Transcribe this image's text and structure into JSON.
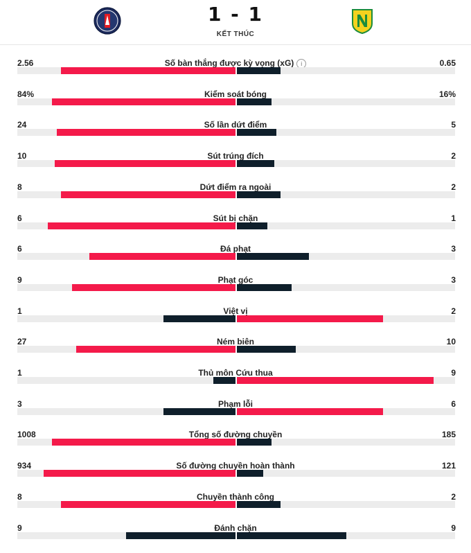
{
  "match": {
    "score": "1 - 1",
    "status": "KẾT THÚC",
    "home_logo_icon": "psg-crest-icon",
    "away_logo_icon": "nantes-crest-icon"
  },
  "colors": {
    "home": "#f41a4a",
    "away": "#0f1f2b",
    "track": "#ececec"
  },
  "stats": [
    {
      "label": "Số bàn thắng được kỳ vọng (xG)",
      "home": "2.56",
      "away": "0.65",
      "home_share": 0.8,
      "away_share": 0.2,
      "info": true,
      "leader": "home"
    },
    {
      "label": "Kiểm soát bóng",
      "home": "84%",
      "away": "16%",
      "home_share": 0.84,
      "away_share": 0.16,
      "leader": "home"
    },
    {
      "label": "Số lần dứt điểm",
      "home": "24",
      "away": "5",
      "home_share": 0.82,
      "away_share": 0.18,
      "leader": "home"
    },
    {
      "label": "Sút trúng đích",
      "home": "10",
      "away": "2",
      "home_share": 0.83,
      "away_share": 0.17,
      "leader": "home"
    },
    {
      "label": "Dứt điểm ra ngoài",
      "home": "8",
      "away": "2",
      "home_share": 0.8,
      "away_share": 0.2,
      "leader": "home"
    },
    {
      "label": "Sút bị chặn",
      "home": "6",
      "away": "1",
      "home_share": 0.86,
      "away_share": 0.14,
      "leader": "home"
    },
    {
      "label": "Đá phạt",
      "home": "6",
      "away": "3",
      "home_share": 0.67,
      "away_share": 0.33,
      "leader": "home"
    },
    {
      "label": "Phạt góc",
      "home": "9",
      "away": "3",
      "home_share": 0.75,
      "away_share": 0.25,
      "leader": "home"
    },
    {
      "label": "Việt vị",
      "home": "1",
      "away": "2",
      "home_share": 0.33,
      "away_share": 0.67,
      "leader": "away"
    },
    {
      "label": "Ném biên",
      "home": "27",
      "away": "10",
      "home_share": 0.73,
      "away_share": 0.27,
      "leader": "home"
    },
    {
      "label": "Thủ môn Cứu thua",
      "home": "1",
      "away": "9",
      "home_share": 0.1,
      "away_share": 0.9,
      "leader": "away"
    },
    {
      "label": "Phạm lỗi",
      "home": "3",
      "away": "6",
      "home_share": 0.33,
      "away_share": 0.67,
      "leader": "away"
    },
    {
      "label": "Tổng số đường chuyền",
      "home": "1008",
      "away": "185",
      "home_share": 0.84,
      "away_share": 0.16,
      "leader": "home"
    },
    {
      "label": "Số đường chuyền hoàn thành",
      "home": "934",
      "away": "121",
      "home_share": 0.88,
      "away_share": 0.12,
      "leader": "home"
    },
    {
      "label": "Chuyền thành công",
      "home": "8",
      "away": "2",
      "home_share": 0.8,
      "away_share": 0.2,
      "leader": "home"
    },
    {
      "label": "Đánh chặn",
      "home": "9",
      "away": "9",
      "home_share": 0.5,
      "away_share": 0.5,
      "leader": "none"
    }
  ]
}
